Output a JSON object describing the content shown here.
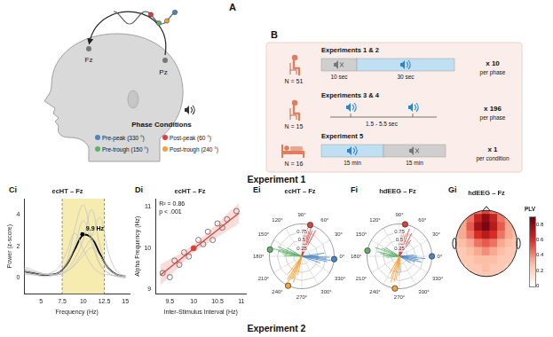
{
  "panel_A": {
    "label": "A",
    "electrodes": [
      "Fz",
      "Pz"
    ],
    "legend_title": "Phase Conditions",
    "conditions": [
      {
        "label": "Pre-peak (330 °)",
        "color": "#4b86c4"
      },
      {
        "label": "Post-peak (60 °)",
        "color": "#d9413a"
      },
      {
        "label": "Pre-trough (150 °)",
        "color": "#5db36a"
      },
      {
        "label": "Post-trough (240 °)",
        "color": "#f2a33a"
      }
    ]
  },
  "panel_B": {
    "label": "B",
    "experiments": [
      {
        "title": "Experiments 1 & 2",
        "n": "N = 51",
        "segments": [
          {
            "label": "10 sec",
            "sound": false
          },
          {
            "label": "30 sec",
            "sound": true
          }
        ],
        "repeats": "x 10",
        "unit": "per phase"
      },
      {
        "title": "Experiments 3 & 4",
        "n": "N = 15",
        "interval": "1.5 - 5.5 sec",
        "repeats": "x 196",
        "unit": "per phase"
      },
      {
        "title": "Experiment 5",
        "n": "N = 16",
        "segments": [
          {
            "label": "15 min",
            "sound": true
          },
          {
            "label": "15 min",
            "sound": false
          }
        ],
        "repeats": "x 1",
        "unit": "per condition"
      }
    ]
  },
  "sections": [
    "Experiment 1",
    "Experiment 2"
  ],
  "chart_data": [
    {
      "panel": "Ci",
      "type": "line",
      "title": "ecHT – Fz",
      "x_label": "Frequency (Hz)",
      "y_label": "Power (z-score)",
      "x": [
        3,
        4,
        5,
        6,
        7,
        8,
        9,
        10,
        11,
        12,
        13,
        14,
        15
      ],
      "xlim": [
        3,
        15.5
      ],
      "xticks": [
        5,
        7.5,
        10,
        12.5,
        15
      ],
      "ylim": [
        -1,
        5
      ],
      "yticks": [
        0,
        2,
        4
      ],
      "band": [
        7.5,
        12.5
      ],
      "band_color": "#f6ecb0",
      "series": [
        {
          "color": "#c4c4c4",
          "values": [
            0.4,
            0.3,
            0.2,
            0.2,
            0.3,
            0.8,
            2.0,
            3.6,
            2.2,
            0.8,
            0.3,
            0.1,
            0.0
          ]
        },
        {
          "color": "#c4c4c4",
          "values": [
            0.6,
            0.4,
            0.3,
            0.2,
            0.2,
            0.5,
            1.2,
            2.4,
            4.3,
            2.0,
            0.6,
            0.2,
            0.1
          ]
        },
        {
          "color": "#c4c4c4",
          "values": [
            0.3,
            0.2,
            0.2,
            0.3,
            0.6,
            1.6,
            2.8,
            1.8,
            0.8,
            0.3,
            0.2,
            0.1,
            0.1
          ]
        },
        {
          "color": "#c4c4c4",
          "values": [
            0.5,
            0.4,
            0.3,
            0.2,
            0.2,
            0.4,
            0.9,
            1.7,
            2.6,
            3.8,
            1.6,
            0.4,
            0.1
          ]
        },
        {
          "color": "#c4c4c4",
          "values": [
            0.2,
            0.2,
            0.1,
            0.1,
            0.3,
            1.0,
            3.1,
            4.6,
            2.6,
            0.9,
            0.3,
            0.1,
            0.0
          ]
        },
        {
          "color": "#c4c4c4",
          "values": [
            0.7,
            0.5,
            0.3,
            0.2,
            0.2,
            0.4,
            0.8,
            1.4,
            1.9,
            1.4,
            0.6,
            0.2,
            0.1
          ]
        },
        {
          "color": "#000000",
          "values": [
            0.4,
            0.3,
            0.2,
            0.2,
            0.3,
            0.8,
            1.8,
            2.7,
            2.5,
            1.5,
            0.6,
            0.2,
            0.1
          ]
        }
      ],
      "annotations": [
        {
          "text": "9.9 Hz",
          "x": 9.9,
          "y": 2.75
        }
      ]
    },
    {
      "panel": "Di",
      "type": "scatter",
      "title": "ecHT – Fz",
      "x_label": "Inter-Stimulus Interval (Hz)",
      "y_label": "Alpha Frequency (Hz)",
      "x": [
        9.35,
        9.5,
        9.6,
        9.7,
        9.8,
        9.9,
        10.0,
        10.1,
        10.2,
        10.3,
        10.4,
        10.5,
        10.6,
        10.7,
        10.9
      ],
      "values": [
        9.4,
        9.3,
        9.7,
        9.6,
        9.9,
        9.8,
        10.0,
        10.2,
        10.1,
        10.4,
        10.2,
        10.6,
        10.5,
        10.7,
        10.9
      ],
      "colors": [
        "#ffffff",
        "#ffffff",
        "#ffffff",
        "#ffffff",
        "#ffffff",
        "#ffffff",
        "#d9413a",
        "#ffffff",
        "#ffffff",
        "#ffffff",
        "#ffffff",
        "#ffffff",
        "#ffffff",
        "#ffffff",
        "#ffffff"
      ],
      "marker": "circle",
      "xlim": [
        9.2,
        11.1
      ],
      "xticks": [
        9.5,
        10,
        10.5,
        11
      ],
      "ylim": [
        8.9,
        11.2
      ],
      "yticks": [
        9,
        10,
        11
      ],
      "fit": {
        "x": [
          9.3,
          10.95
        ],
        "values": [
          9.35,
          10.85
        ],
        "color": "#d9413a"
      },
      "fit_ci": {
        "x": [
          9.3,
          10.0,
          10.95
        ],
        "lower": [
          9.1,
          9.9,
          10.6
        ],
        "upper": [
          9.6,
          10.1,
          11.1
        ]
      },
      "annotations": [
        {
          "text": "R² = 0.86"
        },
        {
          "text": "p < .001"
        }
      ]
    },
    {
      "panel": "Ei",
      "type": "polar",
      "title": "ecHT – Fz",
      "rlim": [
        0,
        1
      ],
      "rticks": [
        0.25,
        0.5,
        0.75
      ],
      "angle_ticks": [
        {
          "value": 0,
          "label": "0°"
        },
        {
          "value": 30,
          "label": "30°"
        },
        {
          "value": 60,
          "label": "60°"
        },
        {
          "value": 90,
          "label": "90°"
        },
        {
          "value": 120,
          "label": "120°"
        },
        {
          "value": 150,
          "label": "150°"
        },
        {
          "value": 180,
          "label": "180°"
        },
        {
          "value": 210,
          "label": "210°"
        },
        {
          "value": 240,
          "label": "240°"
        },
        {
          "value": 270,
          "label": "270°"
        },
        {
          "value": 300,
          "label": "300°"
        },
        {
          "value": 330,
          "label": "330°"
        }
      ],
      "series": [
        {
          "color": "#4b86c4",
          "angles": [
            340,
            348,
            352,
            355,
            358,
            2,
            8
          ],
          "values": [
            0.6,
            0.8,
            0.9,
            0.75,
            0.85,
            0.5,
            0.7
          ],
          "mean_angle": 355
        },
        {
          "color": "#d9413a",
          "angles": [
            62,
            68,
            72,
            75,
            78,
            82,
            85
          ],
          "values": [
            0.9,
            0.85,
            0.95,
            0.8,
            0.9,
            0.7,
            0.85
          ],
          "mean_angle": 75
        },
        {
          "color": "#5db36a",
          "angles": [
            150,
            158,
            162,
            165,
            168,
            172,
            178
          ],
          "values": [
            0.5,
            0.8,
            0.7,
            0.9,
            0.75,
            0.6,
            0.55
          ],
          "mean_angle": 168
        },
        {
          "color": "#f2a33a",
          "angles": [
            232,
            238,
            242,
            245,
            248,
            252,
            258
          ],
          "values": [
            0.7,
            0.85,
            0.9,
            0.8,
            0.75,
            0.85,
            0.6
          ],
          "mean_angle": 245
        }
      ]
    },
    {
      "panel": "Fi",
      "type": "polar",
      "title": "hdEEG – Fz",
      "rlim": [
        0,
        1
      ],
      "rticks": [
        0.25,
        0.5,
        0.75
      ],
      "angle_ticks": [
        {
          "value": 0,
          "label": "0°"
        },
        {
          "value": 30,
          "label": "30°"
        },
        {
          "value": 60,
          "label": "60°"
        },
        {
          "value": 90,
          "label": "90°"
        },
        {
          "value": 120,
          "label": "120°"
        },
        {
          "value": 150,
          "label": "150°"
        },
        {
          "value": 180,
          "label": "180°"
        },
        {
          "value": 210,
          "label": "210°"
        },
        {
          "value": 240,
          "label": "240°"
        },
        {
          "value": 270,
          "label": "270°"
        },
        {
          "value": 300,
          "label": "300°"
        },
        {
          "value": 330,
          "label": "330°"
        }
      ],
      "series": [
        {
          "color": "#4b86c4",
          "angles": [
            330,
            340,
            345,
            350,
            355,
            0,
            5
          ],
          "values": [
            0.4,
            0.5,
            0.7,
            0.6,
            0.8,
            0.55,
            0.45
          ],
          "mean_angle": 0
        },
        {
          "color": "#d9413a",
          "angles": [
            55,
            62,
            70,
            75,
            80,
            85,
            92
          ],
          "values": [
            0.6,
            0.8,
            0.9,
            0.7,
            0.85,
            0.75,
            0.5
          ],
          "mean_angle": 80
        },
        {
          "color": "#5db36a",
          "angles": [
            148,
            155,
            160,
            168,
            172,
            178,
            185
          ],
          "values": [
            0.5,
            0.6,
            0.8,
            0.7,
            0.6,
            0.5,
            0.4
          ],
          "mean_angle": 170
        },
        {
          "color": "#f2a33a",
          "angles": [
            240,
            248,
            252,
            258,
            262,
            268,
            275
          ],
          "values": [
            0.6,
            0.7,
            0.85,
            0.8,
            0.7,
            0.6,
            0.5
          ],
          "mean_angle": 262
        }
      ]
    },
    {
      "panel": "Gi",
      "type": "heatmap",
      "title": "hdEEG – Fz",
      "tick_labels": false,
      "x": [
        -1,
        -0.75,
        -0.5,
        -0.25,
        0,
        0.25,
        0.5,
        0.75,
        1
      ],
      "y": [
        1,
        0.75,
        0.5,
        0.25,
        0,
        -0.25,
        -0.5,
        -0.75,
        -1
      ],
      "xlim": [
        -1.3,
        1.3
      ],
      "ylim": [
        -1.3,
        1.3
      ],
      "values": [
        [
          0.25,
          0.3,
          0.35,
          0.45,
          0.55,
          0.45,
          0.35,
          0.3,
          0.25
        ],
        [
          0.3,
          0.35,
          0.45,
          0.65,
          0.8,
          0.65,
          0.45,
          0.35,
          0.3
        ],
        [
          0.3,
          0.35,
          0.5,
          0.75,
          0.85,
          0.7,
          0.5,
          0.35,
          0.3
        ],
        [
          0.3,
          0.35,
          0.45,
          0.6,
          0.7,
          0.6,
          0.45,
          0.35,
          0.3
        ],
        [
          0.25,
          0.3,
          0.35,
          0.45,
          0.5,
          0.45,
          0.35,
          0.3,
          0.25
        ],
        [
          0.25,
          0.25,
          0.3,
          0.35,
          0.4,
          0.35,
          0.3,
          0.25,
          0.25
        ],
        [
          0.2,
          0.25,
          0.25,
          0.3,
          0.3,
          0.3,
          0.25,
          0.25,
          0.2
        ],
        [
          0.2,
          0.2,
          0.25,
          0.25,
          0.3,
          0.25,
          0.25,
          0.2,
          0.2
        ],
        [
          0.2,
          0.2,
          0.2,
          0.25,
          0.25,
          0.25,
          0.2,
          0.2,
          0.2
        ]
      ],
      "colorbar": {
        "label": "PLV",
        "range": [
          0,
          0.9
        ],
        "ticks": [
          0,
          0.2,
          0.4,
          0.6,
          0.8
        ]
      }
    }
  ]
}
